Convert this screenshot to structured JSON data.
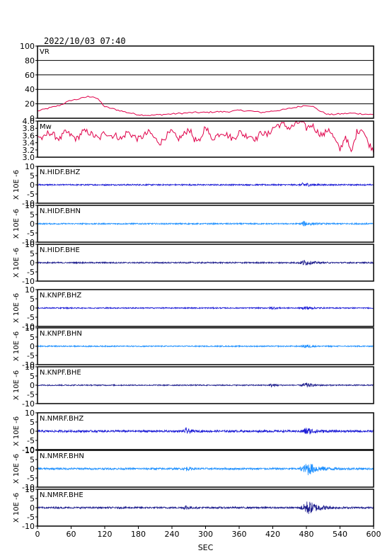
{
  "header": {
    "timestamp": "2022/10/03 07:40"
  },
  "colors": {
    "vr": "#e0004a",
    "mw": "#e0004a",
    "bhz": "#1a1ad6",
    "bhn": "#1e90ff",
    "bhe": "#1a1a8c"
  },
  "chart_data": [
    {
      "type": "line",
      "name": "VR",
      "label": "VR",
      "ylim": [
        0,
        100
      ],
      "yticks": [
        0,
        20,
        40,
        60,
        80,
        100
      ],
      "grid": true,
      "x": [
        0,
        20,
        40,
        60,
        70,
        80,
        90,
        100,
        110,
        120,
        140,
        160,
        180,
        200,
        220,
        240,
        260,
        280,
        300,
        320,
        340,
        360,
        380,
        400,
        420,
        440,
        460,
        480,
        490,
        500,
        510,
        520,
        540,
        560,
        580,
        600
      ],
      "values": [
        10,
        14,
        18,
        25,
        26,
        28,
        30,
        30,
        25,
        16,
        12,
        8,
        5,
        4,
        5,
        6,
        7,
        8,
        8,
        9,
        9,
        11,
        10,
        8,
        10,
        12,
        15,
        18,
        17,
        12,
        8,
        5,
        6,
        7,
        6,
        5
      ]
    },
    {
      "type": "line",
      "name": "Mw",
      "label": "Mw",
      "ylim": [
        3.0,
        4.0
      ],
      "yticks": [
        3.0,
        3.2,
        3.4,
        3.6,
        3.8,
        4.0
      ],
      "ytick_labels": [
        "3.0",
        "3.2",
        "3.4",
        "3.6",
        "3.8",
        "4.0"
      ],
      "x": [
        0,
        10,
        20,
        30,
        40,
        50,
        60,
        70,
        80,
        90,
        100,
        110,
        120,
        130,
        140,
        150,
        160,
        170,
        180,
        190,
        200,
        210,
        220,
        230,
        240,
        250,
        260,
        270,
        280,
        290,
        300,
        310,
        320,
        330,
        340,
        350,
        360,
        370,
        380,
        390,
        400,
        410,
        420,
        430,
        440,
        450,
        460,
        470,
        480,
        490,
        500,
        510,
        520,
        530,
        540,
        550,
        560,
        570,
        580,
        590,
        600
      ],
      "values": [
        3.6,
        3.5,
        3.7,
        3.6,
        3.5,
        3.7,
        3.6,
        3.5,
        3.7,
        3.7,
        3.6,
        3.5,
        3.7,
        3.6,
        3.6,
        3.5,
        3.7,
        3.6,
        3.5,
        3.6,
        3.7,
        3.5,
        3.4,
        3.6,
        3.7,
        3.5,
        3.6,
        3.8,
        3.5,
        3.4,
        3.9,
        3.5,
        3.6,
        3.7,
        3.6,
        3.5,
        3.7,
        3.6,
        3.6,
        3.5,
        3.7,
        3.6,
        3.8,
        3.9,
        3.9,
        3.8,
        3.9,
        4.0,
        3.8,
        3.9,
        3.7,
        3.6,
        3.8,
        3.5,
        3.2,
        3.6,
        3.1,
        3.7,
        3.8,
        3.4,
        3.2
      ]
    },
    {
      "type": "line",
      "label": "N.HIDF.BHZ",
      "color_key": "bhz",
      "ylim": [
        -10,
        10
      ],
      "yticks": [
        -10,
        -5,
        0,
        5,
        10
      ],
      "noise": 0.35,
      "bursts": [
        {
          "t": 475,
          "amp": 1.2,
          "w": 14
        }
      ]
    },
    {
      "type": "line",
      "label": "N.HIDF.BHN",
      "color_key": "bhn",
      "ylim": [
        -10,
        10
      ],
      "yticks": [
        -10,
        -5,
        0,
        5,
        10
      ],
      "noise": 0.35,
      "bursts": [
        {
          "t": 475,
          "amp": 1.3,
          "w": 14
        }
      ]
    },
    {
      "type": "line",
      "label": "N.HIDF.BHE",
      "color_key": "bhe",
      "ylim": [
        -10,
        10
      ],
      "yticks": [
        -10,
        -5,
        0,
        5,
        10
      ],
      "noise": 0.35,
      "bursts": [
        {
          "t": 475,
          "amp": 1.4,
          "w": 16
        }
      ]
    },
    {
      "type": "line",
      "label": "N.KNPF.BHZ",
      "color_key": "bhz",
      "ylim": [
        -10,
        10
      ],
      "yticks": [
        -10,
        -5,
        0,
        5,
        10
      ],
      "noise": 0.3,
      "bursts": [
        {
          "t": 418,
          "amp": 0.8,
          "w": 8
        },
        {
          "t": 478,
          "amp": 1.0,
          "w": 12
        }
      ]
    },
    {
      "type": "line",
      "label": "N.KNPF.BHN",
      "color_key": "bhn",
      "ylim": [
        -10,
        10
      ],
      "yticks": [
        -10,
        -5,
        0,
        5,
        10
      ],
      "noise": 0.3,
      "bursts": [
        {
          "t": 478,
          "amp": 1.0,
          "w": 12
        }
      ]
    },
    {
      "type": "line",
      "label": "N.KNPF.BHE",
      "color_key": "bhe",
      "ylim": [
        -10,
        10
      ],
      "yticks": [
        -10,
        -5,
        0,
        5,
        10
      ],
      "noise": 0.3,
      "bursts": [
        {
          "t": 418,
          "amp": 0.9,
          "w": 8
        },
        {
          "t": 478,
          "amp": 1.3,
          "w": 14
        }
      ]
    },
    {
      "type": "line",
      "label": "N.NMRF.BHZ",
      "color_key": "bhz",
      "ylim": [
        -10,
        10
      ],
      "yticks": [
        -10,
        -5,
        0,
        5,
        10
      ],
      "noise": 0.55,
      "bursts": [
        {
          "t": 265,
          "amp": 1.5,
          "w": 8
        },
        {
          "t": 480,
          "amp": 1.8,
          "w": 18
        }
      ]
    },
    {
      "type": "line",
      "label": "N.NMRF.BHN",
      "color_key": "bhn",
      "ylim": [
        -10,
        10
      ],
      "yticks": [
        -10,
        -5,
        0,
        5,
        10
      ],
      "noise": 0.5,
      "bursts": [
        {
          "t": 265,
          "amp": 1.0,
          "w": 8
        },
        {
          "t": 482,
          "amp": 3.5,
          "w": 22
        }
      ]
    },
    {
      "type": "line",
      "label": "N.NMRF.BHE",
      "color_key": "bhe",
      "ylim": [
        -10,
        10
      ],
      "yticks": [
        -10,
        -5,
        0,
        5,
        10
      ],
      "noise": 0.45,
      "bursts": [
        {
          "t": 265,
          "amp": 1.2,
          "w": 8
        },
        {
          "t": 482,
          "amp": 3.8,
          "w": 22
        }
      ]
    }
  ],
  "x_axis": {
    "xlim": [
      0,
      600
    ],
    "ticks": [
      0,
      60,
      120,
      180,
      240,
      300,
      360,
      420,
      480,
      540,
      600
    ],
    "xlabel": "SEC"
  },
  "y_unit_label": "X 10E -6"
}
